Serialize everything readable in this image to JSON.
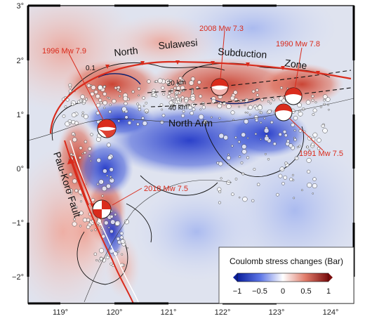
{
  "axes": {
    "lon_ticks": [
      "119°",
      "120°",
      "121°",
      "122°",
      "123°",
      "124°"
    ],
    "lat_ticks": [
      "3°",
      "2°",
      "1°",
      "0°",
      "−1°",
      "−2°"
    ]
  },
  "events": [
    {
      "label": "1996 Mw 7.9"
    },
    {
      "label": "2008 Mw 7.3"
    },
    {
      "label": "1990 Mw 7.8"
    },
    {
      "label": "1991 Mw 7.5"
    },
    {
      "label": "2018 Mw 7.5"
    }
  ],
  "features": {
    "subduction_words": [
      "North",
      "Sulawesi",
      "Subduction",
      "Zone"
    ],
    "north_arm": "North Arm",
    "fault": "Palu-Koro Fault",
    "contour_01": "0.1",
    "depth_20": "20 km",
    "depth_40": "40 km"
  },
  "legend": {
    "title": "Coulomb stress changes (Bar)",
    "ticks": [
      "−1",
      "−0.5",
      "0",
      "0.5",
      "1"
    ]
  },
  "colors": {
    "positive": "#c0392b",
    "negative": "#1f3fbf",
    "annotation_red": "#d92b1c"
  }
}
